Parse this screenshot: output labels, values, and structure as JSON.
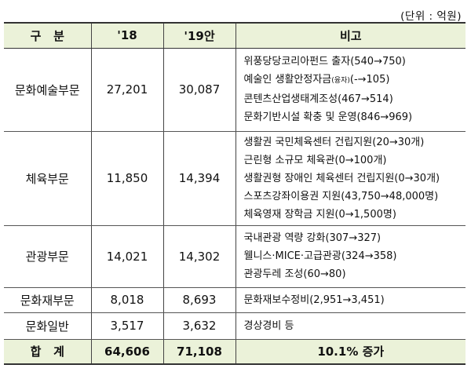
{
  "unit": "(단위 : 억원)",
  "header": {
    "category": "구   분",
    "y2018": "'18",
    "y2019": "'19안",
    "note": "비고"
  },
  "rows": [
    {
      "category": "문화예술부문",
      "y2018": "27,201",
      "y2019": "30,087",
      "notes": [
        "위풍당당코리아펀드 출자(540→750)",
        "예술인 생활안정자금",
        "(융자)",
        "(-→105)",
        "콘텐츠산업생태계조성(467→514)",
        "문화기반시설 확충 및 운영(846→969)"
      ]
    },
    {
      "category": "체육부문",
      "y2018": "11,850",
      "y2019": "14,394",
      "notes": [
        "생활권 국민체육센터 건립지원(20→30개)",
        "근린형 소규모 체육관(0→100개)",
        "생활권형 장애인 체육센터 건립지원(0→30개)",
        "스포츠강좌이용권 지원(43,750→48,000명)",
        "체육영재 장학금 지원(0→1,500명)"
      ]
    },
    {
      "category": "관광부문",
      "y2018": "14,021",
      "y2019": "14,302",
      "notes": [
        "국내관광 역량 강화(307→327)",
        "웰니스·MICE·고급관광(324→358)",
        "관광두레 조성(60→80)"
      ]
    },
    {
      "category": "문화재부문",
      "y2018": "8,018",
      "y2019": "8,693",
      "notes": [
        "문화재보수정비(2,951→3,451)"
      ]
    },
    {
      "category": "문화일반",
      "y2018": "3,517",
      "y2019": "3,632",
      "notes": [
        "경상경비 등"
      ]
    }
  ],
  "total": {
    "category": "합   계",
    "y2018": "64,606",
    "y2019": "71,108",
    "note": "10.1% 증가"
  }
}
